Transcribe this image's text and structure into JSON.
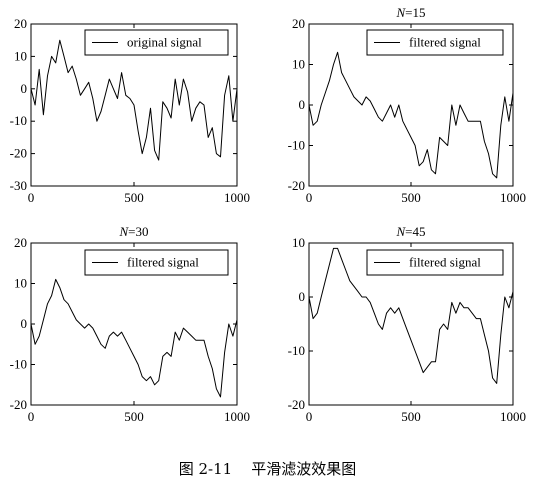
{
  "caption": {
    "number": "图 2-11",
    "text": "平滑滤波效果图"
  },
  "chart_data": [
    {
      "type": "line",
      "title": "",
      "legend": [
        "original signal"
      ],
      "legend_position": "top-right",
      "xlim": [
        0,
        1000
      ],
      "ylim": [
        -30,
        20
      ],
      "xticks": [
        0,
        500,
        1000
      ],
      "yticks": [
        -30,
        -20,
        -10,
        0,
        10,
        20
      ],
      "grid": false,
      "series": [
        {
          "name": "original signal",
          "x": [
            0,
            20,
            40,
            60,
            80,
            100,
            120,
            140,
            160,
            180,
            200,
            220,
            240,
            260,
            280,
            300,
            320,
            340,
            360,
            380,
            400,
            420,
            440,
            460,
            480,
            500,
            520,
            540,
            560,
            580,
            600,
            620,
            640,
            660,
            680,
            700,
            720,
            740,
            760,
            780,
            800,
            820,
            840,
            860,
            880,
            900,
            920,
            940,
            960,
            980,
            1000
          ],
          "y": [
            0,
            -5,
            6,
            -8,
            4,
            10,
            8,
            15,
            10,
            5,
            7,
            3,
            -2,
            0,
            2,
            -3,
            -10,
            -7,
            -2,
            3,
            0,
            -3,
            5,
            -2,
            -3,
            -5,
            -13,
            -20,
            -15,
            -6,
            -19,
            -22,
            -4,
            -6,
            -9,
            3,
            -5,
            3,
            -1,
            -10,
            -6,
            -4,
            -5,
            -15,
            -12,
            -20,
            -21,
            -2,
            4,
            -10,
            0
          ]
        }
      ]
    },
    {
      "type": "line",
      "title_prefix": "N",
      "title_suffix": "=15",
      "legend": [
        "filtered signal"
      ],
      "legend_position": "top-right",
      "xlim": [
        0,
        1000
      ],
      "ylim": [
        -20,
        20
      ],
      "xticks": [
        0,
        500,
        1000
      ],
      "yticks": [
        -20,
        -10,
        0,
        10,
        20
      ],
      "grid": false,
      "series": [
        {
          "name": "filtered signal",
          "x": [
            0,
            20,
            40,
            60,
            80,
            100,
            120,
            140,
            160,
            180,
            200,
            220,
            240,
            260,
            280,
            300,
            320,
            340,
            360,
            380,
            400,
            420,
            440,
            460,
            480,
            500,
            520,
            540,
            560,
            580,
            600,
            620,
            640,
            660,
            680,
            700,
            720,
            740,
            760,
            780,
            800,
            820,
            840,
            860,
            880,
            900,
            920,
            940,
            960,
            980,
            1000
          ],
          "y": [
            0,
            -5,
            -4,
            0,
            3,
            6,
            10,
            13,
            8,
            6,
            4,
            2,
            1,
            0,
            2,
            1,
            -1,
            -3,
            -4,
            -2,
            0,
            -3,
            0,
            -4,
            -6,
            -8,
            -10,
            -15,
            -14,
            -11,
            -16,
            -17,
            -8,
            -9,
            -10,
            0,
            -5,
            0,
            -2,
            -4,
            -4,
            -4,
            -4,
            -9,
            -12,
            -17,
            -18,
            -5,
            2,
            -4,
            3
          ]
        }
      ]
    },
    {
      "type": "line",
      "title_prefix": "N",
      "title_suffix": "=30",
      "legend": [
        "filtered signal"
      ],
      "legend_position": "top-right",
      "xlim": [
        0,
        1000
      ],
      "ylim": [
        -20,
        20
      ],
      "xticks": [
        0,
        500,
        1000
      ],
      "yticks": [
        -20,
        -10,
        0,
        10,
        20
      ],
      "grid": false,
      "series": [
        {
          "name": "filtered signal",
          "x": [
            0,
            20,
            40,
            60,
            80,
            100,
            120,
            140,
            160,
            180,
            200,
            220,
            240,
            260,
            280,
            300,
            320,
            340,
            360,
            380,
            400,
            420,
            440,
            460,
            480,
            500,
            520,
            540,
            560,
            580,
            600,
            620,
            640,
            660,
            680,
            700,
            720,
            740,
            760,
            780,
            800,
            820,
            840,
            860,
            880,
            900,
            920,
            940,
            960,
            980,
            1000
          ],
          "y": [
            0,
            -5,
            -3,
            1,
            5,
            7,
            11,
            9,
            6,
            5,
            3,
            1,
            0,
            -1,
            0,
            -1,
            -3,
            -5,
            -6,
            -3,
            -2,
            -3,
            -2,
            -4,
            -6,
            -8,
            -10,
            -13,
            -14,
            -13,
            -15,
            -14,
            -8,
            -7,
            -8,
            -2,
            -4,
            -1,
            -2,
            -3,
            -4,
            -4,
            -4,
            -8,
            -11,
            -16,
            -18,
            -7,
            0,
            -3,
            1
          ]
        }
      ]
    },
    {
      "type": "line",
      "title_prefix": "N",
      "title_suffix": "=45",
      "legend": [
        "filtered signal"
      ],
      "legend_position": "top-right",
      "xlim": [
        0,
        1000
      ],
      "ylim": [
        -20,
        10
      ],
      "xticks": [
        0,
        500,
        1000
      ],
      "yticks": [
        -20,
        -10,
        0,
        10
      ],
      "grid": false,
      "series": [
        {
          "name": "filtered signal",
          "x": [
            0,
            20,
            40,
            60,
            80,
            100,
            120,
            140,
            160,
            180,
            200,
            220,
            240,
            260,
            280,
            300,
            320,
            340,
            360,
            380,
            400,
            420,
            440,
            460,
            480,
            500,
            520,
            540,
            560,
            580,
            600,
            620,
            640,
            660,
            680,
            700,
            720,
            740,
            760,
            780,
            800,
            820,
            840,
            860,
            880,
            900,
            920,
            940,
            960,
            980,
            1000
          ],
          "y": [
            0,
            -4,
            -3,
            0,
            3,
            6,
            9,
            9,
            7,
            5,
            3,
            2,
            1,
            0,
            0,
            -1,
            -3,
            -5,
            -6,
            -3,
            -2,
            -3,
            -2,
            -4,
            -6,
            -8,
            -10,
            -12,
            -14,
            -13,
            -12,
            -12,
            -6,
            -5,
            -6,
            -1,
            -3,
            -1,
            -2,
            -2,
            -3,
            -4,
            -4,
            -7,
            -10,
            -15,
            -16,
            -7,
            0,
            -2,
            1
          ]
        }
      ]
    }
  ]
}
